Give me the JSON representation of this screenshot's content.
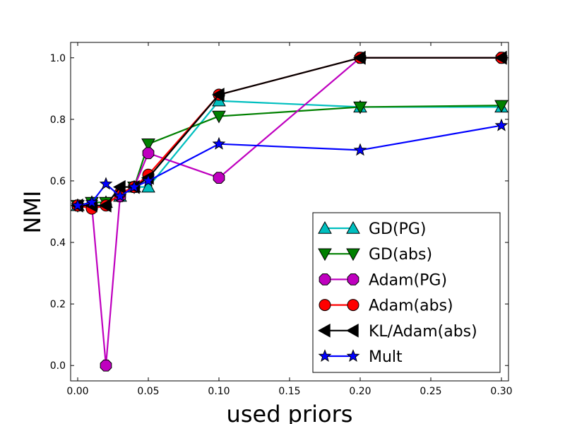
{
  "chart_data": {
    "type": "line",
    "title": "",
    "xlabel": "used priors",
    "ylabel": "NMI",
    "xlim": [
      -0.005,
      0.305
    ],
    "ylim": [
      -0.05,
      1.05
    ],
    "xticks": [
      0.0,
      0.05,
      0.1,
      0.15,
      0.2,
      0.25,
      0.3
    ],
    "xtick_labels": [
      "0.00",
      "0.05",
      "0.10",
      "0.15",
      "0.20",
      "0.25",
      "0.30"
    ],
    "yticks": [
      0.0,
      0.2,
      0.4,
      0.6,
      0.8,
      1.0
    ],
    "ytick_labels": [
      "0.0",
      "0.2",
      "0.4",
      "0.6",
      "0.8",
      "1.0"
    ],
    "grid": false,
    "legend_position": "lower-right",
    "x": [
      0.0,
      0.01,
      0.02,
      0.03,
      0.04,
      0.05,
      0.1,
      0.2,
      0.3
    ],
    "series": [
      {
        "name": "GD(PG)",
        "color": "#00bfbf",
        "marker": "triangle-up",
        "values": [
          0.52,
          0.53,
          0.53,
          0.55,
          0.58,
          0.58,
          0.86,
          0.84,
          0.84
        ]
      },
      {
        "name": "GD(abs)",
        "color": "#008000",
        "marker": "triangle-down",
        "values": [
          0.52,
          0.53,
          0.53,
          0.55,
          0.58,
          0.72,
          0.81,
          0.84,
          0.845
        ]
      },
      {
        "name": "Adam(PG)",
        "color": "#bf00bf",
        "marker": "octagon",
        "values": [
          0.52,
          0.52,
          0.0,
          0.55,
          0.58,
          0.69,
          0.61,
          1.0,
          1.0
        ]
      },
      {
        "name": "Adam(abs)",
        "color": "#ff0000",
        "marker": "circle",
        "values": [
          0.52,
          0.51,
          0.52,
          0.56,
          0.58,
          0.62,
          0.88,
          1.0,
          1.0
        ]
      },
      {
        "name": "KL/Adam(abs)",
        "color": "#000000",
        "marker": "triangle-left",
        "values": [
          0.52,
          0.52,
          0.52,
          0.58,
          0.58,
          0.61,
          0.88,
          1.0,
          1.0
        ]
      },
      {
        "name": "Mult",
        "color": "#0000ff",
        "marker": "star",
        "values": [
          0.52,
          0.53,
          0.59,
          0.55,
          0.58,
          0.6,
          0.72,
          0.7,
          0.78
        ]
      }
    ]
  }
}
